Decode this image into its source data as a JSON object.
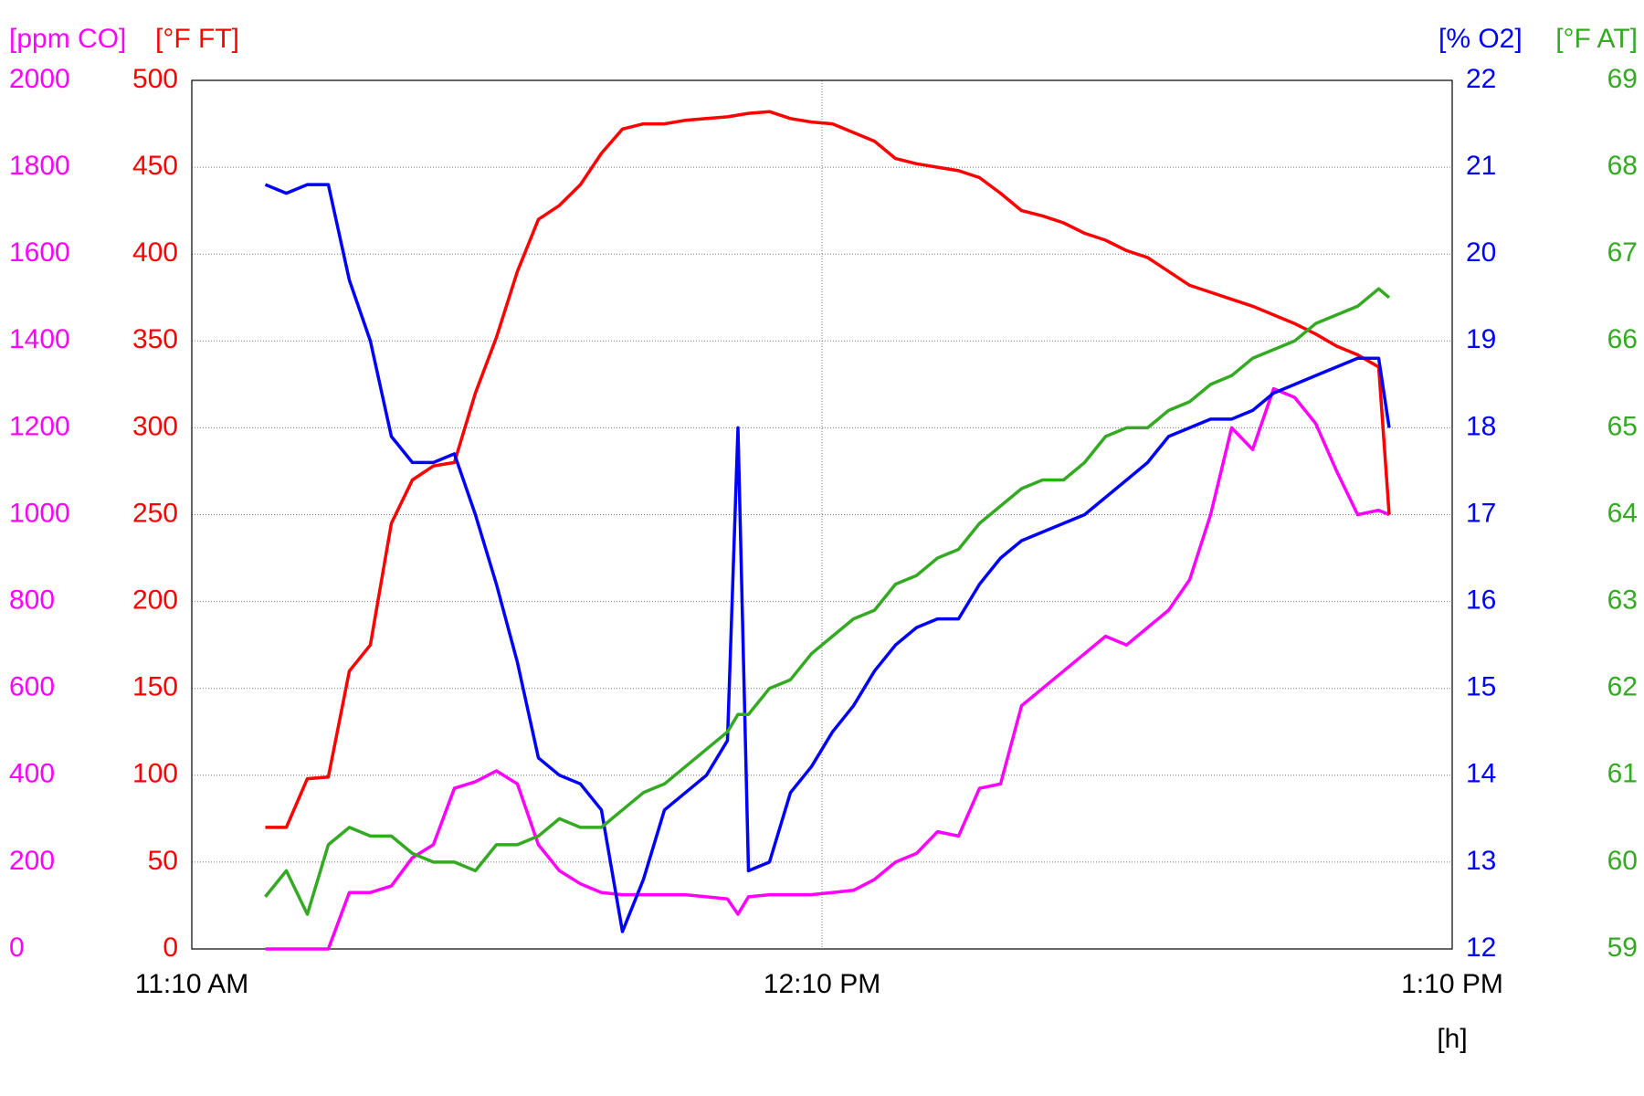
{
  "chart_data": {
    "type": "line",
    "grid": true,
    "x": [
      "11:17 AM",
      "11:19 AM",
      "11:21 AM",
      "11:23 AM",
      "11:25 AM",
      "11:27 AM",
      "11:29 AM",
      "11:31 AM",
      "11:33 AM",
      "11:35 AM",
      "11:37 AM",
      "11:39 AM",
      "11:41 AM",
      "11:43 AM",
      "11:45 AM",
      "11:47 AM",
      "11:49 AM",
      "11:51 AM",
      "11:53 AM",
      "11:55 AM",
      "11:57 AM",
      "11:59 AM",
      "12:01 PM",
      "12:02 PM",
      "12:03 PM",
      "12:05 PM",
      "12:07 PM",
      "12:09 PM",
      "12:11 PM",
      "12:13 PM",
      "12:15 PM",
      "12:17 PM",
      "12:19 PM",
      "12:21 PM",
      "12:23 PM",
      "12:25 PM",
      "12:27 PM",
      "12:29 PM",
      "12:31 PM",
      "12:33 PM",
      "12:35 PM",
      "12:37 PM",
      "12:39 PM",
      "12:41 PM",
      "12:43 PM",
      "12:45 PM",
      "12:47 PM",
      "12:49 PM",
      "12:51 PM",
      "12:53 PM",
      "12:55 PM",
      "12:57 PM",
      "12:59 PM",
      "1:01 PM",
      "1:03 PM",
      "1:04 PM"
    ],
    "xlim": [
      "11:10 AM",
      "1:10 PM"
    ],
    "xticks": [
      "11:10 AM",
      "12:10 PM",
      "1:10 PM"
    ],
    "xlabel": "[h]",
    "series": [
      {
        "label": "[ppm CO]",
        "color": "#ff00ff",
        "side": "left",
        "ylim": [
          0,
          2000
        ],
        "yticks": [
          0,
          200,
          400,
          600,
          800,
          1000,
          1200,
          1400,
          1600,
          1800,
          2000
        ],
        "values": [
          0,
          0,
          0,
          0,
          130,
          130,
          145,
          210,
          240,
          370,
          385,
          410,
          380,
          240,
          180,
          150,
          130,
          125,
          125,
          125,
          125,
          120,
          115,
          80,
          120,
          125,
          125,
          125,
          130,
          135,
          160,
          200,
          220,
          270,
          260,
          370,
          380,
          560,
          600,
          640,
          680,
          720,
          700,
          740,
          780,
          850,
          1000,
          1200,
          1150,
          1290,
          1270,
          1210,
          1100,
          1000,
          1010,
          1000
        ]
      },
      {
        "label": "[°F FT]",
        "color": "#ff0000",
        "side": "left",
        "ylim": [
          0,
          500
        ],
        "yticks": [
          0,
          50,
          100,
          150,
          200,
          250,
          300,
          350,
          400,
          450,
          500
        ],
        "values": [
          70,
          70,
          98,
          99,
          160,
          175,
          245,
          270,
          278,
          280,
          320,
          352,
          390,
          420,
          428,
          440,
          458,
          472,
          475,
          475,
          477,
          478,
          479,
          480,
          481,
          482,
          478,
          476,
          475,
          470,
          465,
          455,
          452,
          450,
          448,
          444,
          435,
          425,
          422,
          418,
          412,
          408,
          402,
          398,
          390,
          382,
          378,
          374,
          370,
          365,
          360,
          354,
          347,
          342,
          335,
          250
        ]
      },
      {
        "label": "[% O2]",
        "color": "#0000ff",
        "side": "right",
        "ylim": [
          12,
          22
        ],
        "yticks": [
          12,
          13,
          14,
          15,
          16,
          17,
          18,
          19,
          20,
          21,
          22
        ],
        "values": [
          20.8,
          20.7,
          20.8,
          20.8,
          19.7,
          19.0,
          17.9,
          17.6,
          17.6,
          17.7,
          17.0,
          16.2,
          15.3,
          14.2,
          14.0,
          13.9,
          13.6,
          12.2,
          12.8,
          13.6,
          13.8,
          14.0,
          14.4,
          18.0,
          12.9,
          13.0,
          13.8,
          14.1,
          14.5,
          14.8,
          15.2,
          15.5,
          15.7,
          15.8,
          15.8,
          16.2,
          16.5,
          16.7,
          16.8,
          16.9,
          17.0,
          17.2,
          17.4,
          17.6,
          17.9,
          18.0,
          18.1,
          18.1,
          18.2,
          18.4,
          18.5,
          18.6,
          18.7,
          18.8,
          18.8,
          18.0
        ]
      },
      {
        "label": "[°F AT]",
        "color": "#33aa22",
        "side": "right",
        "ylim": [
          59,
          69
        ],
        "yticks": [
          59,
          60,
          61,
          62,
          63,
          64,
          65,
          66,
          67,
          68,
          69
        ],
        "values": [
          59.6,
          59.9,
          59.4,
          60.2,
          60.4,
          60.3,
          60.3,
          60.1,
          60.0,
          60.0,
          59.9,
          60.2,
          60.2,
          60.3,
          60.5,
          60.4,
          60.4,
          60.6,
          60.8,
          60.9,
          61.1,
          61.3,
          61.5,
          61.7,
          61.7,
          62.0,
          62.1,
          62.4,
          62.6,
          62.8,
          62.9,
          63.2,
          63.3,
          63.5,
          63.6,
          63.9,
          64.1,
          64.3,
          64.4,
          64.4,
          64.6,
          64.9,
          65.0,
          65.0,
          65.2,
          65.3,
          65.5,
          65.6,
          65.8,
          65.9,
          66.0,
          66.2,
          66.3,
          66.4,
          66.6,
          66.5
        ]
      }
    ]
  }
}
